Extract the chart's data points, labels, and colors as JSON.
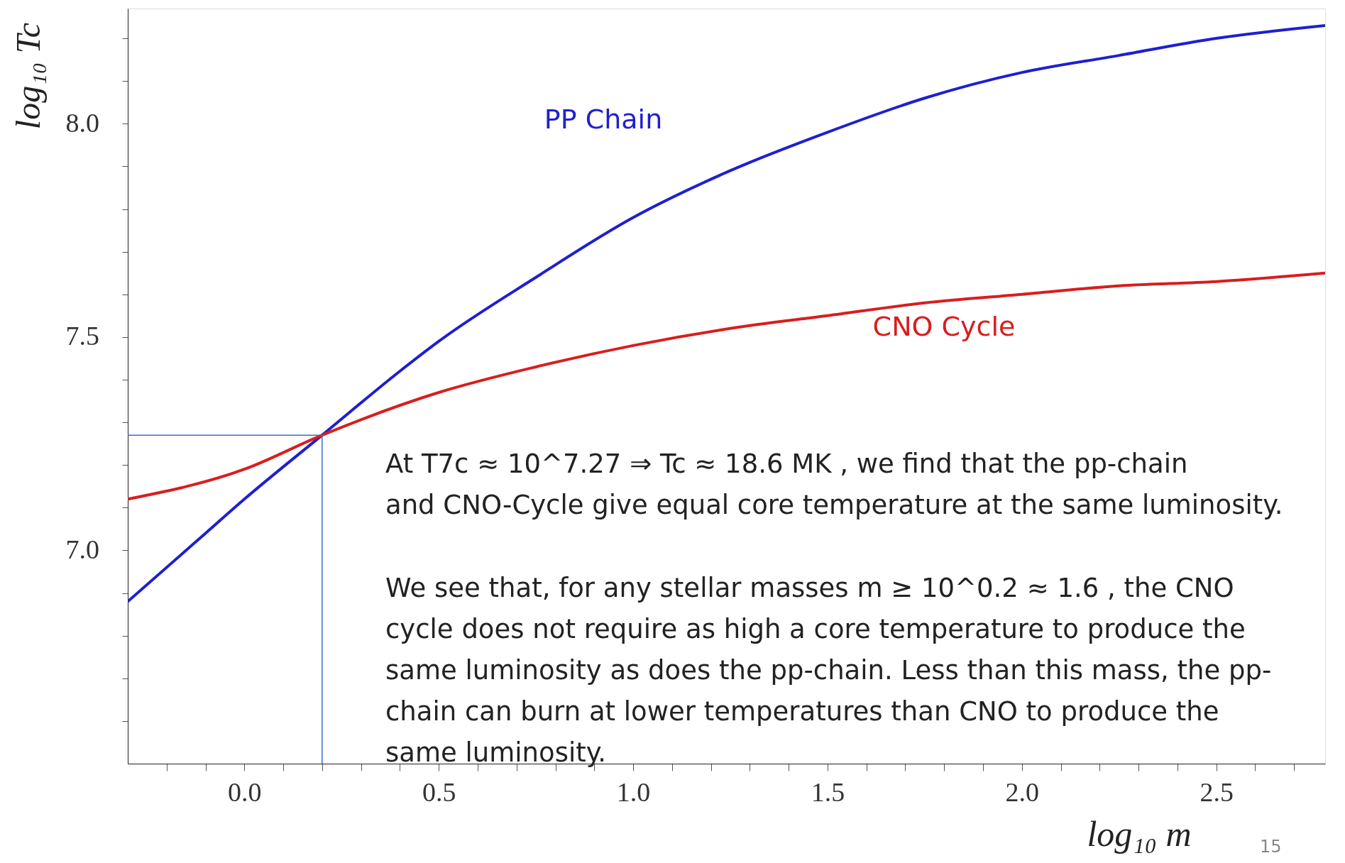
{
  "chart_data": {
    "type": "line",
    "xlabel": "log₁₀ m",
    "ylabel": "log₁₀ Tc",
    "xlim": [
      -0.3,
      2.78
    ],
    "ylim": [
      6.5,
      8.27
    ],
    "xticks": [
      {
        "value": -0.2,
        "label": null
      },
      {
        "value": -0.1,
        "label": null
      },
      {
        "value": 0,
        "label": "0.0"
      },
      {
        "value": 0.1,
        "label": null
      },
      {
        "value": 0.2,
        "label": null
      },
      {
        "value": 0.3,
        "label": null
      },
      {
        "value": 0.4,
        "label": null
      },
      {
        "value": 0.5,
        "label": "0.5"
      },
      {
        "value": 0.6,
        "label": null
      },
      {
        "value": 0.7,
        "label": null
      },
      {
        "value": 0.8,
        "label": null
      },
      {
        "value": 0.9,
        "label": null
      },
      {
        "value": 1,
        "label": "1.0"
      },
      {
        "value": 1.1,
        "label": null
      },
      {
        "value": 1.2,
        "label": null
      },
      {
        "value": 1.3,
        "label": null
      },
      {
        "value": 1.4,
        "label": null
      },
      {
        "value": 1.5,
        "label": "1.5"
      },
      {
        "value": 1.6,
        "label": null
      },
      {
        "value": 1.7,
        "label": null
      },
      {
        "value": 1.8,
        "label": null
      },
      {
        "value": 1.9,
        "label": null
      },
      {
        "value": 2,
        "label": "2.0"
      },
      {
        "value": 2.1,
        "label": null
      },
      {
        "value": 2.2,
        "label": null
      },
      {
        "value": 2.3,
        "label": null
      },
      {
        "value": 2.4,
        "label": null
      },
      {
        "value": 2.5,
        "label": "2.5"
      },
      {
        "value": 2.6,
        "label": null
      },
      {
        "value": 2.7,
        "label": null
      }
    ],
    "yticks": [
      {
        "value": 6.6,
        "label": null
      },
      {
        "value": 6.7,
        "label": null
      },
      {
        "value": 6.8,
        "label": null
      },
      {
        "value": 6.9,
        "label": null
      },
      {
        "value": 7,
        "label": "7.0"
      },
      {
        "value": 7.1,
        "label": null
      },
      {
        "value": 7.2,
        "label": null
      },
      {
        "value": 7.3,
        "label": null
      },
      {
        "value": 7.4,
        "label": null
      },
      {
        "value": 7.5,
        "label": "7.5"
      },
      {
        "value": 7.6,
        "label": null
      },
      {
        "value": 7.7,
        "label": null
      },
      {
        "value": 7.8,
        "label": null
      },
      {
        "value": 7.9,
        "label": null
      },
      {
        "value": 8,
        "label": "8.0"
      },
      {
        "value": 8.1,
        "label": null
      },
      {
        "value": 8.2,
        "label": null
      }
    ],
    "grid": false,
    "marker": "none",
    "line_style": "solid",
    "series": [
      {
        "name": "PP Chain",
        "color": "#1f1fd0",
        "x": [
          -0.3,
          -0.1,
          0,
          0.2,
          0.4,
          0.5,
          0.75,
          1,
          1.25,
          1.5,
          1.75,
          2,
          2.25,
          2.5,
          2.78
        ],
        "values": [
          6.88,
          7.04,
          7.12,
          7.27,
          7.42,
          7.49,
          7.64,
          7.78,
          7.89,
          7.98,
          8.06,
          8.12,
          8.16,
          8.2,
          8.23
        ]
      },
      {
        "name": "CNO Cycle",
        "color": "#d81e1e",
        "x": [
          -0.3,
          0,
          0.2,
          0.5,
          0.75,
          1,
          1.25,
          1.5,
          1.75,
          2,
          2.25,
          2.5,
          2.78
        ],
        "values": [
          7.12,
          7.19,
          7.27,
          7.37,
          7.43,
          7.48,
          7.52,
          7.55,
          7.58,
          7.6,
          7.62,
          7.63,
          7.65
        ]
      }
    ],
    "ref_lines": [
      {
        "axis": "x",
        "value": 0.2,
        "color": "#3a6fc4"
      },
      {
        "axis": "y",
        "value": 7.27,
        "color": "#3a6fc4"
      }
    ],
    "annotations": [
      "At T7c ≈ 10^7.27 ⇒ Tc ≈ 18.6 MK , we find that the pp-chain\nand CNO-Cycle give equal core temperature at the same luminosity.",
      "We see that, for any stellar masses m ≥ 10^0.2 ≈ 1.6 , the CNO\ncycle does not require as high a core temperature to produce the\nsame luminosity as does the pp-chain.  Less than this mass, the pp-\nchain can burn at lower temperatures than CNO to produce the\nsame luminosity.",
      "15"
    ]
  }
}
